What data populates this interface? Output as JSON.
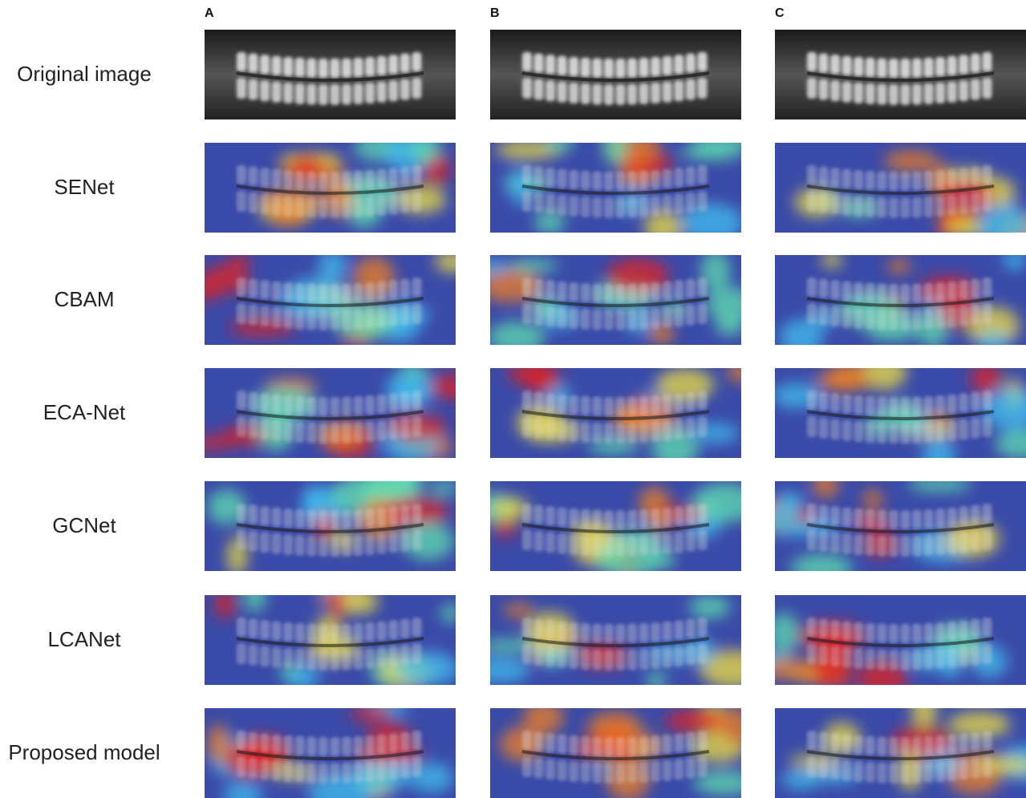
{
  "column_labels": [
    "A",
    "B",
    "C"
  ],
  "row_labels": [
    "Original image",
    "SENet",
    "CBAM",
    "ECA-Net",
    "GCNet",
    "LCANet",
    "Proposed model"
  ]
}
